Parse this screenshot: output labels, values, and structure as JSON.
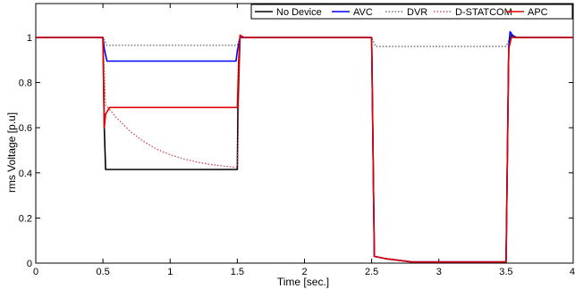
{
  "chart_data": {
    "type": "line",
    "title": "",
    "xlabel": "Time [sec.]",
    "ylabel": "rms Voltage [p.u]",
    "xlim": [
      0,
      4
    ],
    "ylim": [
      0,
      1.15
    ],
    "xticks": [
      0,
      0.5,
      1,
      1.5,
      2,
      2.5,
      3,
      3.5,
      4
    ],
    "xtick_labels": [
      "0",
      "0.5",
      "1",
      "1.5",
      "2",
      "2.5",
      "3",
      "3.5",
      "4"
    ],
    "yticks": [
      0,
      0.2,
      0.4,
      0.6,
      0.8,
      1
    ],
    "ytick_labels": [
      "0",
      "0.2",
      "0.4",
      "0.6",
      "0.8",
      "1"
    ],
    "grid": false,
    "legend_position": "top-right",
    "series": [
      {
        "name": "No Device",
        "color": "#000000",
        "dash": "solid",
        "points": [
          [
            0,
            1.0
          ],
          [
            0.5,
            1.0
          ],
          [
            0.51,
            0.6
          ],
          [
            0.52,
            0.415
          ],
          [
            1.5,
            0.415
          ],
          [
            1.505,
            0.7
          ],
          [
            1.52,
            1.0
          ],
          [
            2.5,
            1.0
          ],
          [
            2.52,
            0.03
          ],
          [
            2.6,
            0.02
          ],
          [
            2.8,
            0.005
          ],
          [
            3.5,
            0.005
          ],
          [
            3.52,
            0.95
          ],
          [
            3.54,
            1.01
          ],
          [
            3.58,
            1.0
          ],
          [
            4,
            1.0
          ]
        ]
      },
      {
        "name": "AVC",
        "color": "#0000ff",
        "dash": "solid",
        "points": [
          [
            0,
            1.0
          ],
          [
            0.5,
            1.0
          ],
          [
            0.51,
            0.95
          ],
          [
            0.53,
            0.895
          ],
          [
            1.49,
            0.895
          ],
          [
            1.5,
            0.94
          ],
          [
            1.52,
            1.0
          ],
          [
            2.5,
            1.0
          ],
          [
            2.52,
            0.03
          ],
          [
            2.6,
            0.02
          ],
          [
            2.8,
            0.005
          ],
          [
            3.5,
            0.005
          ],
          [
            3.52,
            0.96
          ],
          [
            3.53,
            1.025
          ],
          [
            3.56,
            1.0
          ],
          [
            4,
            1.0
          ]
        ]
      },
      {
        "name": "DVR",
        "color": "#555555",
        "dash": "dotted",
        "points": [
          [
            0,
            1.0
          ],
          [
            0.5,
            1.0
          ],
          [
            0.53,
            0.965
          ],
          [
            1.5,
            0.965
          ],
          [
            1.52,
            1.0
          ],
          [
            2.5,
            1.0
          ],
          [
            2.53,
            0.96
          ],
          [
            3.5,
            0.96
          ],
          [
            3.53,
            1.0
          ],
          [
            4,
            1.0
          ]
        ]
      },
      {
        "name": "D-STATCOM",
        "color": "#c8384b",
        "dash": "dotted",
        "points": [
          [
            0,
            1.0
          ],
          [
            0.5,
            1.0
          ],
          [
            0.52,
            0.7
          ],
          [
            0.55,
            0.68
          ],
          [
            0.6,
            0.645
          ],
          [
            0.7,
            0.585
          ],
          [
            0.8,
            0.54
          ],
          [
            0.9,
            0.505
          ],
          [
            1.0,
            0.48
          ],
          [
            1.1,
            0.462
          ],
          [
            1.2,
            0.448
          ],
          [
            1.3,
            0.437
          ],
          [
            1.4,
            0.43
          ],
          [
            1.48,
            0.425
          ],
          [
            1.5,
            0.425
          ],
          [
            1.52,
            1.0
          ],
          [
            2.5,
            1.0
          ],
          [
            2.52,
            0.03
          ],
          [
            2.6,
            0.02
          ],
          [
            2.8,
            0.005
          ],
          [
            3.5,
            0.005
          ],
          [
            3.52,
            0.95
          ],
          [
            3.54,
            1.0
          ],
          [
            4,
            1.0
          ]
        ]
      },
      {
        "name": "APC",
        "color": "#e00000",
        "dash": "solid",
        "points": [
          [
            0,
            1.0
          ],
          [
            0.5,
            1.0
          ],
          [
            0.51,
            0.6
          ],
          [
            0.52,
            0.66
          ],
          [
            0.55,
            0.69
          ],
          [
            1.5,
            0.69
          ],
          [
            1.51,
            0.9
          ],
          [
            1.52,
            1.01
          ],
          [
            1.55,
            1.0
          ],
          [
            2.5,
            1.0
          ],
          [
            2.52,
            0.03
          ],
          [
            2.6,
            0.02
          ],
          [
            2.8,
            0.005
          ],
          [
            3.5,
            0.005
          ],
          [
            3.52,
            0.95
          ],
          [
            3.54,
            1.0
          ],
          [
            4,
            1.0
          ]
        ]
      }
    ]
  }
}
